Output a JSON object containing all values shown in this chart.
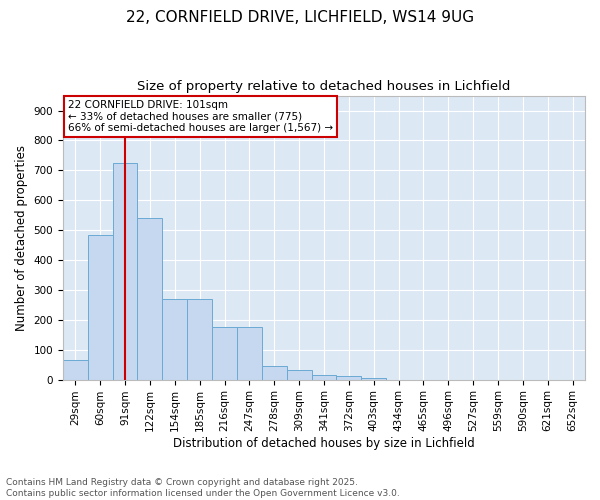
{
  "title": "22, CORNFIELD DRIVE, LICHFIELD, WS14 9UG",
  "subtitle": "Size of property relative to detached houses in Lichfield",
  "xlabel": "Distribution of detached houses by size in Lichfield",
  "ylabel": "Number of detached properties",
  "categories": [
    "29sqm",
    "60sqm",
    "91sqm",
    "122sqm",
    "154sqm",
    "185sqm",
    "216sqm",
    "247sqm",
    "278sqm",
    "309sqm",
    "341sqm",
    "372sqm",
    "403sqm",
    "434sqm",
    "465sqm",
    "496sqm",
    "527sqm",
    "559sqm",
    "590sqm",
    "621sqm",
    "652sqm"
  ],
  "values": [
    65,
    485,
    725,
    540,
    270,
    270,
    175,
    175,
    47,
    33,
    16,
    12,
    5,
    0,
    0,
    0,
    0,
    0,
    0,
    0,
    0
  ],
  "bar_color": "#c5d8ef",
  "bar_edgecolor": "#6aaad4",
  "vline_color": "#cc0000",
  "vline_pos": 2.5,
  "annotation_text": "22 CORNFIELD DRIVE: 101sqm\n← 33% of detached houses are smaller (775)\n66% of semi-detached houses are larger (1,567) →",
  "annotation_box_edgecolor": "#cc0000",
  "annotation_box_facecolor": "#ffffff",
  "ylim": [
    0,
    950
  ],
  "yticks": [
    0,
    100,
    200,
    300,
    400,
    500,
    600,
    700,
    800,
    900
  ],
  "background_color": "#dde8f5",
  "grid_color": "#ffffff",
  "footer": "Contains HM Land Registry data © Crown copyright and database right 2025.\nContains public sector information licensed under the Open Government Licence v3.0.",
  "title_fontsize": 11,
  "subtitle_fontsize": 9.5,
  "xlabel_fontsize": 8.5,
  "ylabel_fontsize": 8.5,
  "tick_fontsize": 7.5,
  "annotation_fontsize": 7.5,
  "footer_fontsize": 6.5
}
